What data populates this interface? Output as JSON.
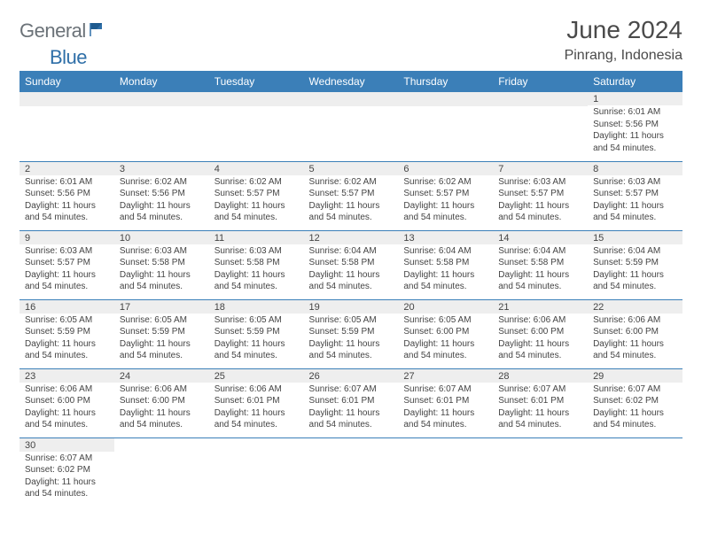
{
  "logo": {
    "text1": "General",
    "text2": "Blue",
    "color1": "#6b7278",
    "color2": "#2f6fa8"
  },
  "title": "June 2024",
  "location": "Pinrang, Indonesia",
  "header_bg": "#3b7fb8",
  "daynum_bg": "#eeeeee",
  "days_of_week": [
    "Sunday",
    "Monday",
    "Tuesday",
    "Wednesday",
    "Thursday",
    "Friday",
    "Saturday"
  ],
  "first_weekday": 6,
  "num_days": 30,
  "cells": {
    "1": {
      "sunrise": "6:01 AM",
      "sunset": "5:56 PM",
      "daylight": "11 hours and 54 minutes."
    },
    "2": {
      "sunrise": "6:01 AM",
      "sunset": "5:56 PM",
      "daylight": "11 hours and 54 minutes."
    },
    "3": {
      "sunrise": "6:02 AM",
      "sunset": "5:56 PM",
      "daylight": "11 hours and 54 minutes."
    },
    "4": {
      "sunrise": "6:02 AM",
      "sunset": "5:57 PM",
      "daylight": "11 hours and 54 minutes."
    },
    "5": {
      "sunrise": "6:02 AM",
      "sunset": "5:57 PM",
      "daylight": "11 hours and 54 minutes."
    },
    "6": {
      "sunrise": "6:02 AM",
      "sunset": "5:57 PM",
      "daylight": "11 hours and 54 minutes."
    },
    "7": {
      "sunrise": "6:03 AM",
      "sunset": "5:57 PM",
      "daylight": "11 hours and 54 minutes."
    },
    "8": {
      "sunrise": "6:03 AM",
      "sunset": "5:57 PM",
      "daylight": "11 hours and 54 minutes."
    },
    "9": {
      "sunrise": "6:03 AM",
      "sunset": "5:57 PM",
      "daylight": "11 hours and 54 minutes."
    },
    "10": {
      "sunrise": "6:03 AM",
      "sunset": "5:58 PM",
      "daylight": "11 hours and 54 minutes."
    },
    "11": {
      "sunrise": "6:03 AM",
      "sunset": "5:58 PM",
      "daylight": "11 hours and 54 minutes."
    },
    "12": {
      "sunrise": "6:04 AM",
      "sunset": "5:58 PM",
      "daylight": "11 hours and 54 minutes."
    },
    "13": {
      "sunrise": "6:04 AM",
      "sunset": "5:58 PM",
      "daylight": "11 hours and 54 minutes."
    },
    "14": {
      "sunrise": "6:04 AM",
      "sunset": "5:58 PM",
      "daylight": "11 hours and 54 minutes."
    },
    "15": {
      "sunrise": "6:04 AM",
      "sunset": "5:59 PM",
      "daylight": "11 hours and 54 minutes."
    },
    "16": {
      "sunrise": "6:05 AM",
      "sunset": "5:59 PM",
      "daylight": "11 hours and 54 minutes."
    },
    "17": {
      "sunrise": "6:05 AM",
      "sunset": "5:59 PM",
      "daylight": "11 hours and 54 minutes."
    },
    "18": {
      "sunrise": "6:05 AM",
      "sunset": "5:59 PM",
      "daylight": "11 hours and 54 minutes."
    },
    "19": {
      "sunrise": "6:05 AM",
      "sunset": "5:59 PM",
      "daylight": "11 hours and 54 minutes."
    },
    "20": {
      "sunrise": "6:05 AM",
      "sunset": "6:00 PM",
      "daylight": "11 hours and 54 minutes."
    },
    "21": {
      "sunrise": "6:06 AM",
      "sunset": "6:00 PM",
      "daylight": "11 hours and 54 minutes."
    },
    "22": {
      "sunrise": "6:06 AM",
      "sunset": "6:00 PM",
      "daylight": "11 hours and 54 minutes."
    },
    "23": {
      "sunrise": "6:06 AM",
      "sunset": "6:00 PM",
      "daylight": "11 hours and 54 minutes."
    },
    "24": {
      "sunrise": "6:06 AM",
      "sunset": "6:00 PM",
      "daylight": "11 hours and 54 minutes."
    },
    "25": {
      "sunrise": "6:06 AM",
      "sunset": "6:01 PM",
      "daylight": "11 hours and 54 minutes."
    },
    "26": {
      "sunrise": "6:07 AM",
      "sunset": "6:01 PM",
      "daylight": "11 hours and 54 minutes."
    },
    "27": {
      "sunrise": "6:07 AM",
      "sunset": "6:01 PM",
      "daylight": "11 hours and 54 minutes."
    },
    "28": {
      "sunrise": "6:07 AM",
      "sunset": "6:01 PM",
      "daylight": "11 hours and 54 minutes."
    },
    "29": {
      "sunrise": "6:07 AM",
      "sunset": "6:02 PM",
      "daylight": "11 hours and 54 minutes."
    },
    "30": {
      "sunrise": "6:07 AM",
      "sunset": "6:02 PM",
      "daylight": "11 hours and 54 minutes."
    }
  },
  "labels": {
    "sunrise": "Sunrise:",
    "sunset": "Sunset:",
    "daylight": "Daylight:"
  }
}
